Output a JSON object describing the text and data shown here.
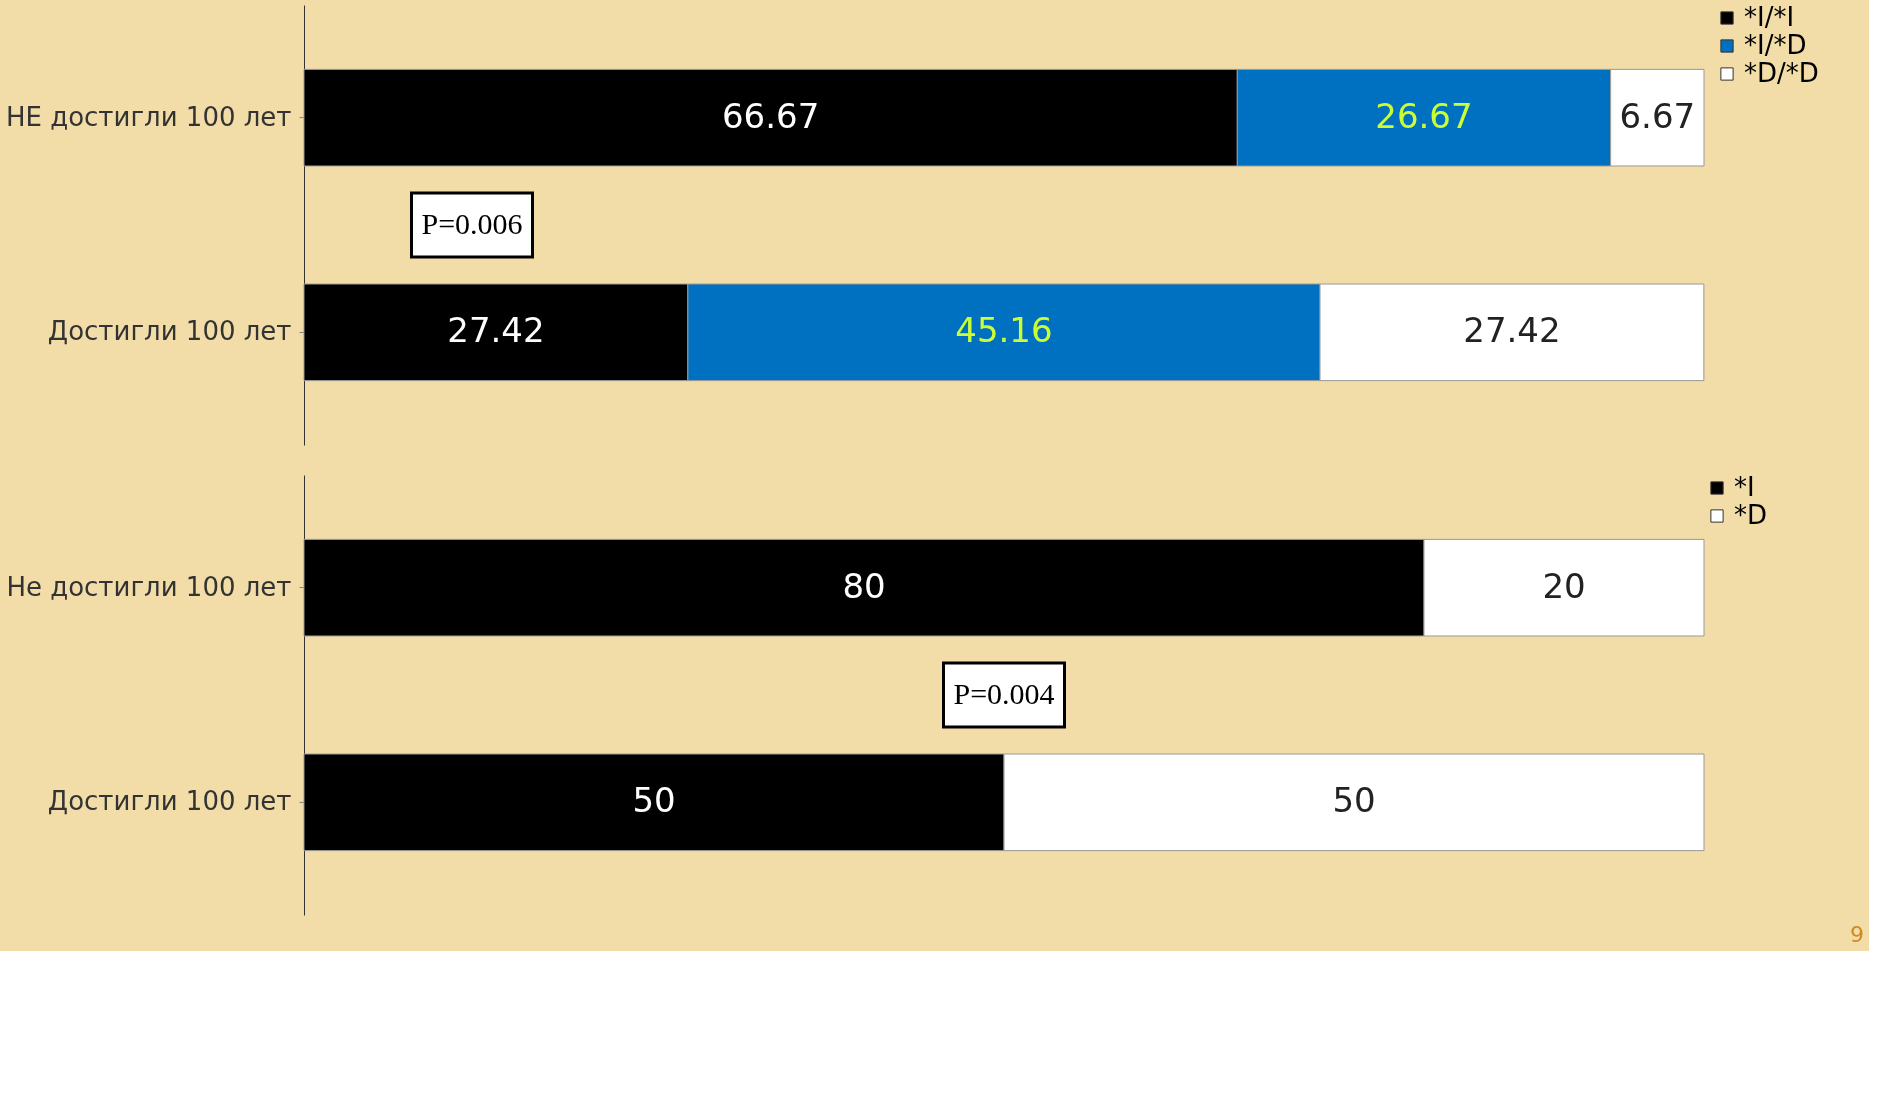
{
  "chart_data": [
    {
      "type": "bar",
      "orientation": "horizontal",
      "stacked": true,
      "data_labels": true,
      "legend": "right",
      "categories": [
        "НЕ достигли 100 лет",
        "Достигли 100 лет"
      ],
      "series": [
        {
          "name": "*I/*I",
          "color": "#000000",
          "values": [
            66.67,
            27.42
          ]
        },
        {
          "name": "*I/*D",
          "color": "#0070c0",
          "values": [
            26.67,
            45.16
          ]
        },
        {
          "name": "*D/*D",
          "color": "#ffffff",
          "values": [
            6.67,
            27.42
          ]
        }
      ],
      "annotations": [
        "P=0.006"
      ]
    },
    {
      "type": "bar",
      "orientation": "horizontal",
      "stacked": true,
      "data_labels": true,
      "legend": "top right",
      "categories": [
        "Не достигли 100 лет",
        "Достигли 100 лет"
      ],
      "series": [
        {
          "name": "*I",
          "color": "#000000",
          "values": [
            80,
            50
          ]
        },
        {
          "name": "*D",
          "color": "#ffffff",
          "values": [
            20,
            50
          ]
        }
      ],
      "annotations": [
        "P=0.004",
        "9"
      ]
    }
  ]
}
